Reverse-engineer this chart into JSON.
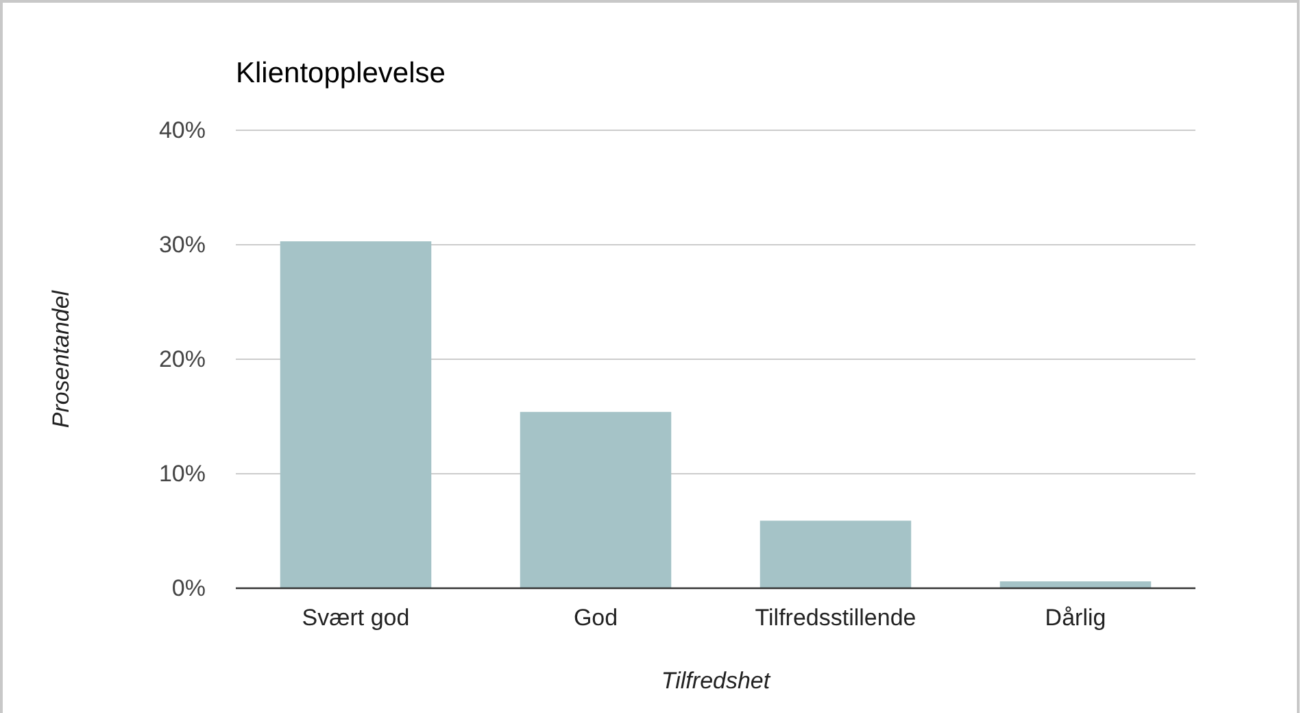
{
  "chart_data": {
    "type": "bar",
    "title": "Klientopplevelse",
    "xlabel": "Tilfredshet",
    "ylabel": "Prosentandel",
    "categories": [
      "Svært god",
      "God",
      "Tilfredsstillende",
      "Dårlig"
    ],
    "values": [
      30.3,
      15.4,
      5.9,
      0.6
    ],
    "color": "#a5c3c7",
    "ylim": [
      0,
      40
    ],
    "yticks": [
      {
        "value": 0,
        "label": "0%"
      },
      {
        "value": 10,
        "label": "10%"
      },
      {
        "value": 20,
        "label": "20%"
      },
      {
        "value": 30,
        "label": "30%"
      },
      {
        "value": 40,
        "label": "40%"
      }
    ],
    "grid": "y"
  }
}
